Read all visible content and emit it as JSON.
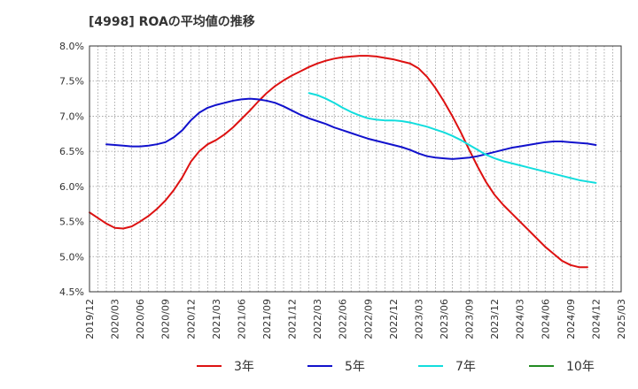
{
  "chart_data": {
    "type": "line",
    "title": "[4998]  ROAの平均値の推移",
    "xlabel": "",
    "ylabel": "",
    "ylim": [
      4.5,
      8.0
    ],
    "xlim": [
      "2019/12",
      "2025/03"
    ],
    "grid": true,
    "legend_position": "bottom",
    "y_ticks": [
      "4.5%",
      "5.0%",
      "5.5%",
      "6.0%",
      "6.5%",
      "7.0%",
      "7.5%",
      "8.0%"
    ],
    "x_ticks": [
      "2019/12",
      "2020/03",
      "2020/06",
      "2020/09",
      "2020/12",
      "2021/03",
      "2021/06",
      "2021/09",
      "2021/12",
      "2022/03",
      "2022/06",
      "2022/09",
      "2022/12",
      "2023/03",
      "2023/06",
      "2023/09",
      "2023/12",
      "2024/03",
      "2024/06",
      "2024/09",
      "2024/12",
      "2025/03"
    ],
    "series": [
      {
        "name": "3年",
        "color": "#dd1111",
        "points": [
          [
            "2019/12",
            5.63
          ],
          [
            "2020/01",
            5.55
          ],
          [
            "2020/02",
            5.47
          ],
          [
            "2020/03",
            5.41
          ],
          [
            "2020/04",
            5.4
          ],
          [
            "2020/05",
            5.43
          ],
          [
            "2020/06",
            5.5
          ],
          [
            "2020/07",
            5.58
          ],
          [
            "2020/08",
            5.68
          ],
          [
            "2020/09",
            5.8
          ],
          [
            "2020/10",
            5.95
          ],
          [
            "2020/11",
            6.13
          ],
          [
            "2020/12",
            6.35
          ],
          [
            "2021/01",
            6.5
          ],
          [
            "2021/02",
            6.6
          ],
          [
            "2021/03",
            6.66
          ],
          [
            "2021/04",
            6.74
          ],
          [
            "2021/05",
            6.84
          ],
          [
            "2021/06",
            6.96
          ],
          [
            "2021/07",
            7.08
          ],
          [
            "2021/08",
            7.21
          ],
          [
            "2021/09",
            7.33
          ],
          [
            "2021/10",
            7.43
          ],
          [
            "2021/11",
            7.51
          ],
          [
            "2021/12",
            7.58
          ],
          [
            "2022/01",
            7.64
          ],
          [
            "2022/02",
            7.7
          ],
          [
            "2022/03",
            7.75
          ],
          [
            "2022/04",
            7.79
          ],
          [
            "2022/05",
            7.82
          ],
          [
            "2022/06",
            7.84
          ],
          [
            "2022/07",
            7.85
          ],
          [
            "2022/08",
            7.86
          ],
          [
            "2022/09",
            7.86
          ],
          [
            "2022/10",
            7.85
          ],
          [
            "2022/11",
            7.83
          ],
          [
            "2022/12",
            7.81
          ],
          [
            "2023/01",
            7.78
          ],
          [
            "2023/02",
            7.75
          ],
          [
            "2023/03",
            7.68
          ],
          [
            "2023/04",
            7.56
          ],
          [
            "2023/05",
            7.4
          ],
          [
            "2023/06",
            7.21
          ],
          [
            "2023/07",
            7.0
          ],
          [
            "2023/08",
            6.77
          ],
          [
            "2023/09",
            6.52
          ],
          [
            "2023/10",
            6.28
          ],
          [
            "2023/11",
            6.06
          ],
          [
            "2023/12",
            5.88
          ],
          [
            "2024/01",
            5.74
          ],
          [
            "2024/02",
            5.62
          ],
          [
            "2024/03",
            5.5
          ],
          [
            "2024/04",
            5.38
          ],
          [
            "2024/05",
            5.26
          ],
          [
            "2024/06",
            5.14
          ],
          [
            "2024/07",
            5.04
          ],
          [
            "2024/08",
            4.94
          ],
          [
            "2024/09",
            4.88
          ],
          [
            "2024/10",
            4.85
          ],
          [
            "2024/11",
            4.85
          ]
        ]
      },
      {
        "name": "5年",
        "color": "#1111cc",
        "points": [
          [
            "2020/02",
            6.6
          ],
          [
            "2020/03",
            6.59
          ],
          [
            "2020/04",
            6.58
          ],
          [
            "2020/05",
            6.57
          ],
          [
            "2020/06",
            6.57
          ],
          [
            "2020/07",
            6.58
          ],
          [
            "2020/08",
            6.6
          ],
          [
            "2020/09",
            6.63
          ],
          [
            "2020/10",
            6.7
          ],
          [
            "2020/11",
            6.8
          ],
          [
            "2020/12",
            6.94
          ],
          [
            "2021/01",
            7.05
          ],
          [
            "2021/02",
            7.12
          ],
          [
            "2021/03",
            7.16
          ],
          [
            "2021/04",
            7.19
          ],
          [
            "2021/05",
            7.22
          ],
          [
            "2021/06",
            7.24
          ],
          [
            "2021/07",
            7.25
          ],
          [
            "2021/08",
            7.24
          ],
          [
            "2021/09",
            7.22
          ],
          [
            "2021/10",
            7.19
          ],
          [
            "2021/11",
            7.14
          ],
          [
            "2021/12",
            7.08
          ],
          [
            "2022/01",
            7.02
          ],
          [
            "2022/02",
            6.97
          ],
          [
            "2022/03",
            6.93
          ],
          [
            "2022/04",
            6.89
          ],
          [
            "2022/05",
            6.84
          ],
          [
            "2022/06",
            6.8
          ],
          [
            "2022/07",
            6.76
          ],
          [
            "2022/08",
            6.72
          ],
          [
            "2022/09",
            6.68
          ],
          [
            "2022/10",
            6.65
          ],
          [
            "2022/11",
            6.62
          ],
          [
            "2022/12",
            6.59
          ],
          [
            "2023/01",
            6.56
          ],
          [
            "2023/02",
            6.52
          ],
          [
            "2023/03",
            6.47
          ],
          [
            "2023/04",
            6.43
          ],
          [
            "2023/05",
            6.41
          ],
          [
            "2023/06",
            6.4
          ],
          [
            "2023/07",
            6.39
          ],
          [
            "2023/08",
            6.4
          ],
          [
            "2023/09",
            6.41
          ],
          [
            "2023/10",
            6.43
          ],
          [
            "2023/11",
            6.46
          ],
          [
            "2023/12",
            6.49
          ],
          [
            "2024/01",
            6.52
          ],
          [
            "2024/02",
            6.55
          ],
          [
            "2024/03",
            6.57
          ],
          [
            "2024/04",
            6.59
          ],
          [
            "2024/05",
            6.61
          ],
          [
            "2024/06",
            6.63
          ],
          [
            "2024/07",
            6.64
          ],
          [
            "2024/08",
            6.64
          ],
          [
            "2024/09",
            6.63
          ],
          [
            "2024/10",
            6.62
          ],
          [
            "2024/11",
            6.61
          ],
          [
            "2024/12",
            6.59
          ]
        ]
      },
      {
        "name": "7年",
        "color": "#11dddd",
        "points": [
          [
            "2022/02",
            7.33
          ],
          [
            "2022/03",
            7.3
          ],
          [
            "2022/04",
            7.25
          ],
          [
            "2022/05",
            7.19
          ],
          [
            "2022/06",
            7.12
          ],
          [
            "2022/07",
            7.06
          ],
          [
            "2022/08",
            7.01
          ],
          [
            "2022/09",
            6.97
          ],
          [
            "2022/10",
            6.95
          ],
          [
            "2022/11",
            6.94
          ],
          [
            "2022/12",
            6.94
          ],
          [
            "2023/01",
            6.93
          ],
          [
            "2023/02",
            6.91
          ],
          [
            "2023/03",
            6.88
          ],
          [
            "2023/04",
            6.85
          ],
          [
            "2023/05",
            6.81
          ],
          [
            "2023/06",
            6.77
          ],
          [
            "2023/07",
            6.72
          ],
          [
            "2023/08",
            6.66
          ],
          [
            "2023/09",
            6.59
          ],
          [
            "2023/10",
            6.52
          ],
          [
            "2023/11",
            6.45
          ],
          [
            "2023/12",
            6.4
          ],
          [
            "2024/01",
            6.36
          ],
          [
            "2024/02",
            6.33
          ],
          [
            "2024/03",
            6.3
          ],
          [
            "2024/04",
            6.27
          ],
          [
            "2024/05",
            6.24
          ],
          [
            "2024/06",
            6.21
          ],
          [
            "2024/07",
            6.18
          ],
          [
            "2024/08",
            6.15
          ],
          [
            "2024/09",
            6.12
          ],
          [
            "2024/10",
            6.09
          ],
          [
            "2024/11",
            6.07
          ],
          [
            "2024/12",
            6.05
          ]
        ]
      },
      {
        "name": "10年",
        "color": "#228b22",
        "points": []
      }
    ]
  }
}
